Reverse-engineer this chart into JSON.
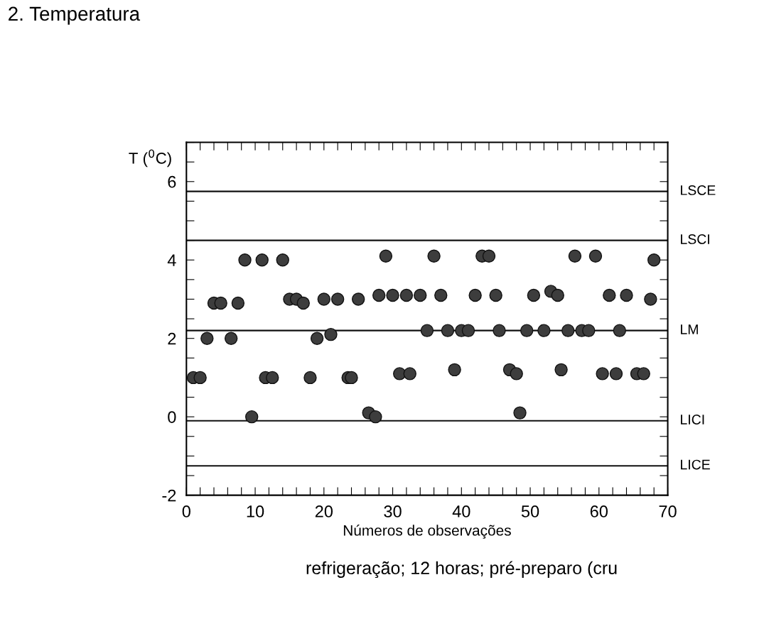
{
  "chart_data": {
    "type": "scatter",
    "title": "2. Temperatura",
    "xlabel": "Números de observações",
    "ylabel": "T ($^{0}$C)",
    "x": [
      1,
      2,
      3,
      4,
      5,
      6.5,
      7.5,
      8.5,
      9.5,
      11,
      11.5,
      12.5,
      14,
      15,
      16,
      17,
      18,
      19,
      20,
      21,
      22,
      23.5,
      24,
      25,
      26.5,
      27.5,
      28,
      29,
      30,
      31,
      32,
      32.5,
      34,
      35,
      36,
      37,
      38,
      39,
      40,
      41,
      42,
      43,
      44,
      45,
      45.5,
      47,
      48,
      48.5,
      49.5,
      50.5,
      52,
      53,
      54,
      54.5,
      55.5,
      56.5,
      57.5,
      58.5,
      59.5,
      60.5,
      61.5,
      62.5,
      63,
      64,
      65.5,
      66.5,
      67.5,
      68
    ],
    "values": [
      1.0,
      1.0,
      2.0,
      2.9,
      2.9,
      2.0,
      2.9,
      4.0,
      0.0,
      4.0,
      1.0,
      1.0,
      4.0,
      3.0,
      3.0,
      2.9,
      1.0,
      2.0,
      3.0,
      2.1,
      3.0,
      1.0,
      1.0,
      3.0,
      0.1,
      0.0,
      3.1,
      4.1,
      3.1,
      1.1,
      3.1,
      1.1,
      3.1,
      2.2,
      4.1,
      3.1,
      2.2,
      1.2,
      2.2,
      2.2,
      3.1,
      4.1,
      4.1,
      3.1,
      2.2,
      1.2,
      1.1,
      0.1,
      2.2,
      3.1,
      2.2,
      3.2,
      3.1,
      1.2,
      2.2,
      4.1,
      2.2,
      2.2,
      4.1,
      1.1,
      3.1,
      1.1,
      2.2,
      3.1,
      1.1,
      1.1,
      3.0,
      4.0
    ],
    "color": "#3d3d3d",
    "marker": "circle",
    "xlim": [
      0,
      70
    ],
    "ylim": [
      -2,
      7
    ],
    "xticks": [
      0,
      {
        "value": 2,
        "label": null
      },
      {
        "value": 4,
        "label": null
      },
      {
        "value": 6,
        "label": null
      },
      {
        "value": 8,
        "label": null
      },
      10,
      {
        "value": 12,
        "label": null
      },
      {
        "value": 14,
        "label": null
      },
      {
        "value": 16,
        "label": null
      },
      {
        "value": 18,
        "label": null
      },
      20,
      {
        "value": 22,
        "label": null
      },
      {
        "value": 24,
        "label": null
      },
      {
        "value": 26,
        "label": null
      },
      {
        "value": 28,
        "label": null
      },
      30,
      {
        "value": 32,
        "label": null
      },
      {
        "value": 34,
        "label": null
      },
      {
        "value": 36,
        "label": null
      },
      {
        "value": 38,
        "label": null
      },
      40,
      {
        "value": 42,
        "label": null
      },
      {
        "value": 44,
        "label": null
      },
      {
        "value": 46,
        "label": null
      },
      {
        "value": 48,
        "label": null
      },
      50,
      {
        "value": 52,
        "label": null
      },
      {
        "value": 54,
        "label": null
      },
      {
        "value": 56,
        "label": null
      },
      {
        "value": 58,
        "label": null
      },
      60,
      {
        "value": 62,
        "label": null
      },
      {
        "value": 64,
        "label": null
      },
      {
        "value": 66,
        "label": null
      },
      {
        "value": 68,
        "label": null
      },
      70
    ],
    "yticks": [
      -2,
      {
        "value": -1.5,
        "label": null
      },
      {
        "value": -1,
        "label": null
      },
      {
        "value": -0.5,
        "label": null
      },
      0,
      {
        "value": 0.5,
        "label": null
      },
      {
        "value": 1,
        "label": null
      },
      {
        "value": 1.5,
        "label": null
      },
      2,
      {
        "value": 2.5,
        "label": null
      },
      {
        "value": 3,
        "label": null
      },
      {
        "value": 3.5,
        "label": null
      },
      4,
      {
        "value": 4.5,
        "label": null
      },
      {
        "value": 5,
        "label": null
      },
      {
        "value": 5.5,
        "label": null
      },
      6,
      {
        "value": 6.5,
        "label": null
      },
      {
        "value": 7,
        "label": null
      }
    ],
    "ref_lines": [
      {
        "axis": "y",
        "value": 5.75,
        "label": "LSCE"
      },
      {
        "axis": "y",
        "value": 4.5,
        "label": "LSCI"
      },
      {
        "axis": "y",
        "value": 2.2,
        "label": "LM"
      },
      {
        "axis": "y",
        "value": -0.1,
        "label": "LICI"
      },
      {
        "axis": "y",
        "value": -1.25,
        "label": "LICE"
      }
    ],
    "annotations": [
      "refrigeração; 12 horas; pré-preparo (cru"
    ]
  }
}
